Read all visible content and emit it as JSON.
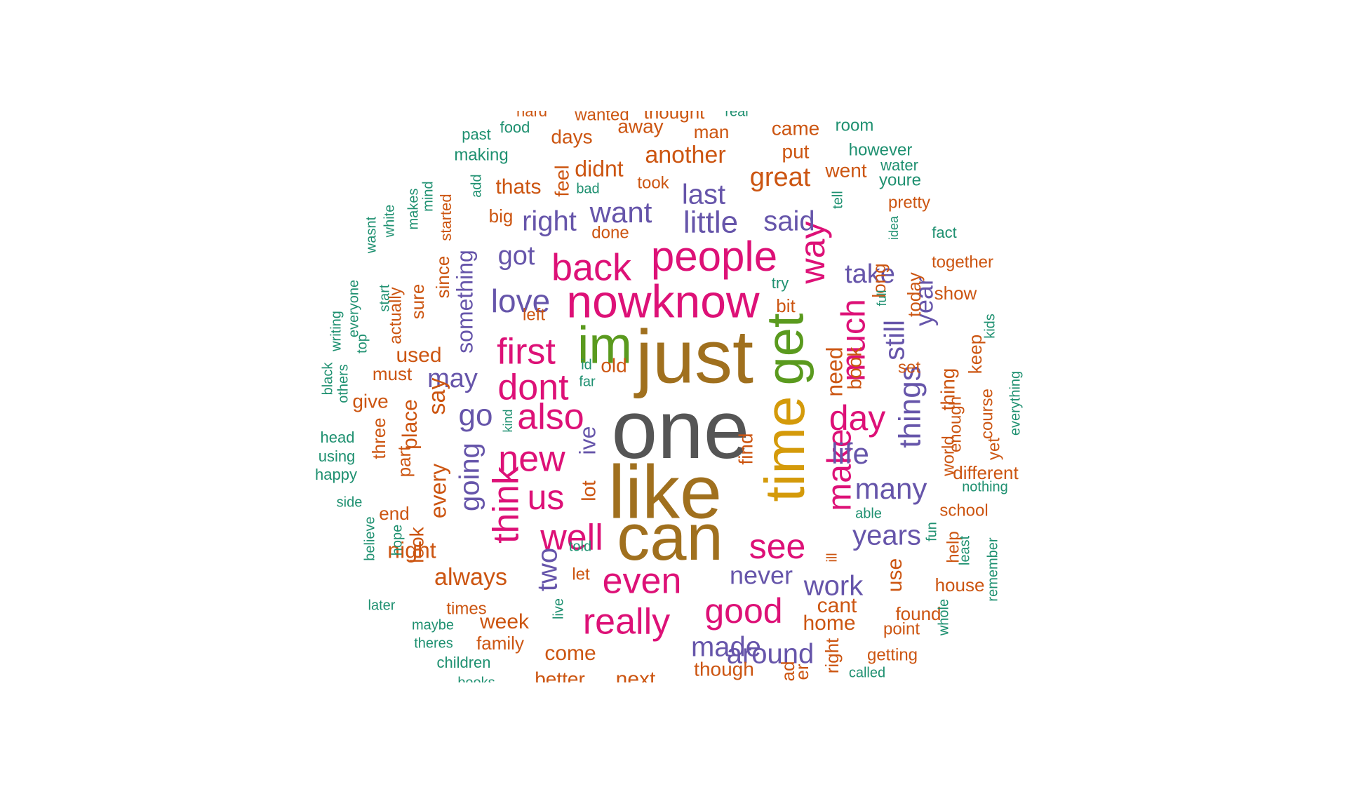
{
  "colors": {
    "dark_gray": "#555555",
    "brown": "#a0701e",
    "olive_green": "#5a9a1e",
    "mustard": "#d49a0a",
    "magenta": "#dd1177",
    "purple": "#6655aa",
    "orange": "#cc5511",
    "teal": "#1e9070"
  },
  "words": [
    {
      "text": "one",
      "color": "dark_gray"
    },
    {
      "text": "just",
      "color": "brown"
    },
    {
      "text": "like",
      "color": "brown"
    },
    {
      "text": "can",
      "color": "brown"
    },
    {
      "text": "im",
      "color": "olive_green"
    },
    {
      "text": "get",
      "color": "olive_green"
    },
    {
      "text": "time",
      "color": "mustard"
    },
    {
      "text": "nowknow",
      "color": "magenta"
    },
    {
      "text": "people",
      "color": "magenta"
    },
    {
      "text": "back",
      "color": "magenta"
    },
    {
      "text": "first",
      "color": "magenta"
    },
    {
      "text": "dont",
      "color": "magenta"
    },
    {
      "text": "also",
      "color": "magenta"
    },
    {
      "text": "new",
      "color": "magenta"
    },
    {
      "text": "us",
      "color": "magenta"
    },
    {
      "text": "well",
      "color": "magenta"
    },
    {
      "text": "even",
      "color": "magenta"
    },
    {
      "text": "really",
      "color": "magenta"
    },
    {
      "text": "good",
      "color": "magenta"
    },
    {
      "text": "see",
      "color": "magenta"
    },
    {
      "text": "make",
      "color": "magenta"
    },
    {
      "text": "much",
      "color": "magenta"
    },
    {
      "text": "day",
      "color": "magenta"
    },
    {
      "text": "way",
      "color": "magenta"
    },
    {
      "text": "think",
      "color": "magenta"
    },
    {
      "text": "love",
      "color": "purple"
    },
    {
      "text": "right",
      "color": "purple"
    },
    {
      "text": "want",
      "color": "purple"
    },
    {
      "text": "little",
      "color": "purple"
    },
    {
      "text": "said",
      "color": "purple"
    },
    {
      "text": "last",
      "color": "purple"
    },
    {
      "text": "got",
      "color": "purple"
    },
    {
      "text": "may",
      "color": "purple"
    },
    {
      "text": "go",
      "color": "purple"
    },
    {
      "text": "going",
      "color": "purple"
    },
    {
      "text": "something",
      "color": "purple"
    },
    {
      "text": "two",
      "color": "purple"
    },
    {
      "text": "ive",
      "color": "purple"
    },
    {
      "text": "many",
      "color": "purple"
    },
    {
      "text": "life",
      "color": "purple"
    },
    {
      "text": "things",
      "color": "purple"
    },
    {
      "text": "years",
      "color": "purple"
    },
    {
      "text": "work",
      "color": "purple"
    },
    {
      "text": "made",
      "color": "purple"
    },
    {
      "text": "around",
      "color": "purple"
    },
    {
      "text": "never",
      "color": "purple"
    },
    {
      "text": "take",
      "color": "purple"
    },
    {
      "text": "still",
      "color": "purple"
    },
    {
      "text": "year",
      "color": "purple"
    },
    {
      "text": "great",
      "color": "orange"
    },
    {
      "text": "another",
      "color": "orange"
    },
    {
      "text": "didnt",
      "color": "orange"
    },
    {
      "text": "days",
      "color": "orange"
    },
    {
      "text": "away",
      "color": "orange"
    },
    {
      "text": "man",
      "color": "orange"
    },
    {
      "text": "came",
      "color": "orange"
    },
    {
      "text": "put",
      "color": "orange"
    },
    {
      "text": "went",
      "color": "orange"
    },
    {
      "text": "thats",
      "color": "orange"
    },
    {
      "text": "feel",
      "color": "orange"
    },
    {
      "text": "took",
      "color": "orange"
    },
    {
      "text": "big",
      "color": "orange"
    },
    {
      "text": "done",
      "color": "orange"
    },
    {
      "text": "left",
      "color": "orange"
    },
    {
      "text": "bit",
      "color": "orange"
    },
    {
      "text": "old",
      "color": "orange"
    },
    {
      "text": "used",
      "color": "orange"
    },
    {
      "text": "must",
      "color": "orange"
    },
    {
      "text": "give",
      "color": "orange"
    },
    {
      "text": "say",
      "color": "orange"
    },
    {
      "text": "place",
      "color": "orange"
    },
    {
      "text": "three",
      "color": "orange"
    },
    {
      "text": "part",
      "color": "orange"
    },
    {
      "text": "every",
      "color": "orange"
    },
    {
      "text": "end",
      "color": "orange"
    },
    {
      "text": "look",
      "color": "orange"
    },
    {
      "text": "night",
      "color": "orange"
    },
    {
      "text": "always",
      "color": "orange"
    },
    {
      "text": "lot",
      "color": "orange"
    },
    {
      "text": "find",
      "color": "orange"
    },
    {
      "text": "need",
      "color": "orange"
    },
    {
      "text": "book",
      "color": "orange"
    },
    {
      "text": "long",
      "color": "orange"
    },
    {
      "text": "today",
      "color": "orange"
    },
    {
      "text": "pretty",
      "color": "orange"
    },
    {
      "text": "together",
      "color": "orange"
    },
    {
      "text": "show",
      "color": "orange"
    },
    {
      "text": "keep",
      "color": "orange"
    },
    {
      "text": "thing",
      "color": "orange"
    },
    {
      "text": "set",
      "color": "orange"
    },
    {
      "text": "world",
      "color": "orange"
    },
    {
      "text": "enough",
      "color": "orange"
    },
    {
      "text": "course",
      "color": "orange"
    },
    {
      "text": "yet",
      "color": "orange"
    },
    {
      "text": "different",
      "color": "orange"
    },
    {
      "text": "school",
      "color": "orange"
    },
    {
      "text": "help",
      "color": "orange"
    },
    {
      "text": "house",
      "color": "orange"
    },
    {
      "text": "found",
      "color": "orange"
    },
    {
      "text": "point",
      "color": "orange"
    },
    {
      "text": "getting",
      "color": "orange"
    },
    {
      "text": "cant",
      "color": "orange"
    },
    {
      "text": "home",
      "color": "orange"
    },
    {
      "text": "use",
      "color": "orange"
    },
    {
      "text": "let",
      "color": "orange"
    },
    {
      "text": "week",
      "color": "orange"
    },
    {
      "text": "times",
      "color": "orange"
    },
    {
      "text": "family",
      "color": "orange"
    },
    {
      "text": "come",
      "color": "orange"
    },
    {
      "text": "though",
      "color": "orange"
    },
    {
      "text": "better",
      "color": "orange"
    },
    {
      "text": "next",
      "color": "orange"
    },
    {
      "text": "sure",
      "color": "orange"
    },
    {
      "text": "since",
      "color": "orange"
    },
    {
      "text": "started",
      "color": "orange"
    },
    {
      "text": "actually",
      "color": "orange"
    },
    {
      "text": "ill",
      "color": "orange"
    },
    {
      "text": "ad",
      "color": "orange"
    },
    {
      "text": "er",
      "color": "orange"
    },
    {
      "text": "right",
      "color": "orange"
    },
    {
      "text": "wanted",
      "color": "orange"
    },
    {
      "text": "thought",
      "color": "orange"
    },
    {
      "text": "hard",
      "color": "orange"
    },
    {
      "text": "past",
      "color": "teal"
    },
    {
      "text": "food",
      "color": "teal"
    },
    {
      "text": "making",
      "color": "teal"
    },
    {
      "text": "room",
      "color": "teal"
    },
    {
      "text": "however",
      "color": "teal"
    },
    {
      "text": "water",
      "color": "teal"
    },
    {
      "text": "youre",
      "color": "teal"
    },
    {
      "text": "bad",
      "color": "teal"
    },
    {
      "text": "add",
      "color": "teal"
    },
    {
      "text": "mind",
      "color": "teal"
    },
    {
      "text": "makes",
      "color": "teal"
    },
    {
      "text": "white",
      "color": "teal"
    },
    {
      "text": "wasnt",
      "color": "teal"
    },
    {
      "text": "start",
      "color": "teal"
    },
    {
      "text": "everyone",
      "color": "teal"
    },
    {
      "text": "writing",
      "color": "teal"
    },
    {
      "text": "top",
      "color": "teal"
    },
    {
      "text": "black",
      "color": "teal"
    },
    {
      "text": "others",
      "color": "teal"
    },
    {
      "text": "head",
      "color": "teal"
    },
    {
      "text": "using",
      "color": "teal"
    },
    {
      "text": "happy",
      "color": "teal"
    },
    {
      "text": "side",
      "color": "teal"
    },
    {
      "text": "believe",
      "color": "teal"
    },
    {
      "text": "hope",
      "color": "teal"
    },
    {
      "text": "later",
      "color": "teal"
    },
    {
      "text": "maybe",
      "color": "teal"
    },
    {
      "text": "theres",
      "color": "teal"
    },
    {
      "text": "children",
      "color": "teal"
    },
    {
      "text": "books",
      "color": "teal"
    },
    {
      "text": "live",
      "color": "teal"
    },
    {
      "text": "told",
      "color": "teal"
    },
    {
      "text": "kind",
      "color": "teal"
    },
    {
      "text": "id",
      "color": "teal"
    },
    {
      "text": "far",
      "color": "teal"
    },
    {
      "text": "try",
      "color": "teal"
    },
    {
      "text": "tell",
      "color": "teal"
    },
    {
      "text": "idea",
      "color": "teal"
    },
    {
      "text": "full",
      "color": "teal"
    },
    {
      "text": "fact",
      "color": "teal"
    },
    {
      "text": "kids",
      "color": "teal"
    },
    {
      "text": "everything",
      "color": "teal"
    },
    {
      "text": "nothing",
      "color": "teal"
    },
    {
      "text": "able",
      "color": "teal"
    },
    {
      "text": "fun",
      "color": "teal"
    },
    {
      "text": "least",
      "color": "teal"
    },
    {
      "text": "remember",
      "color": "teal"
    },
    {
      "text": "whole",
      "color": "teal"
    },
    {
      "text": "called",
      "color": "teal"
    },
    {
      "text": "real",
      "color": "teal"
    }
  ]
}
